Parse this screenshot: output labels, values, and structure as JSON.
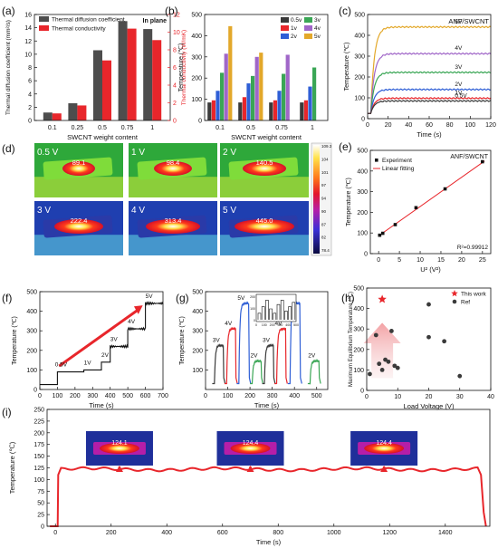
{
  "panel_labels": [
    "(a)",
    "(b)",
    "(c)",
    "(d)",
    "(e)",
    "(f)",
    "(g)",
    "(h)",
    "(i)"
  ],
  "chart_data": [
    {
      "id": "a",
      "type": "bar",
      "categories": [
        "0.1",
        "0.25",
        "0.5",
        "0.75",
        "1"
      ],
      "series": [
        {
          "name": "Thermal diffusion coefficient",
          "values": [
            1.2,
            2.6,
            10.6,
            15.0,
            13.8
          ],
          "color": "#4d4d4d"
        },
        {
          "name": "Thermal conductivity",
          "values": [
            0.8,
            1.7,
            6.8,
            10.4,
            9.1
          ],
          "color": "#e8262b"
        }
      ],
      "xlabel": "SWCNT weight content",
      "ylabel": "Thermal diffusion coefficient (mm²/s)",
      "y2label": "Thermal conductivity (W/mK)",
      "ylim": [
        0,
        16
      ],
      "y2lim": [
        0,
        12
      ],
      "yticks": [
        0,
        2,
        4,
        6,
        8,
        10,
        12,
        14,
        16
      ],
      "y2ticks": [
        0,
        2,
        4,
        6,
        8,
        10,
        12
      ],
      "annotation": "In plane",
      "legend": "top-left"
    },
    {
      "id": "b",
      "type": "bar",
      "categories": [
        "0.1",
        "0.5",
        "0.75",
        "1"
      ],
      "series": [
        {
          "name": "0.5v",
          "values": [
            85,
            85,
            85,
            85
          ],
          "color": "#3a3a3a"
        },
        {
          "name": "1v",
          "values": [
            95,
            110,
            95,
            95
          ],
          "color": "#e8262b"
        },
        {
          "name": "2v",
          "values": [
            140,
            175,
            140,
            160
          ],
          "color": "#2f5fd6"
        },
        {
          "name": "3v",
          "values": [
            225,
            210,
            220,
            250
          ],
          "color": "#3aa655"
        },
        {
          "name": "4v",
          "values": [
            315,
            300,
            310,
            0
          ],
          "color": "#a066c8"
        },
        {
          "name": "5v",
          "values": [
            445,
            320,
            0,
            0
          ],
          "color": "#e3a82a"
        }
      ],
      "xlabel": "SWCNT weight content",
      "ylabel": "Temperature (℃)",
      "ylim": [
        0,
        500
      ],
      "yticks": [
        0,
        100,
        200,
        300,
        400,
        500
      ],
      "legend": "top-right"
    },
    {
      "id": "c",
      "type": "line",
      "title": "ANF/SWCNT",
      "xlabel": "Time (s)",
      "ylabel": "Temperature (℃)",
      "xlim": [
        0,
        120
      ],
      "ylim": [
        0,
        500
      ],
      "xticks": [
        0,
        20,
        40,
        60,
        80,
        100,
        120
      ],
      "yticks": [
        0,
        100,
        200,
        300,
        400,
        500
      ],
      "series": [
        {
          "name": "5V",
          "steady": 440,
          "color": "#e3a82a"
        },
        {
          "name": "4V",
          "steady": 312,
          "color": "#a066c8"
        },
        {
          "name": "3V",
          "steady": 222,
          "color": "#3aa655"
        },
        {
          "name": "2V",
          "steady": 140,
          "color": "#2f5fd6"
        },
        {
          "name": "1V",
          "steady": 98,
          "color": "#e8262b"
        },
        {
          "name": "0.5V",
          "steady": 85,
          "color": "#3a3a3a"
        }
      ]
    },
    {
      "id": "d",
      "type": "heatmap",
      "images": [
        {
          "voltage": "0.5 V",
          "temp": "89.1"
        },
        {
          "voltage": "1 V",
          "temp": "98.4"
        },
        {
          "voltage": "2 V",
          "temp": "140.5"
        },
        {
          "voltage": "3 V",
          "temp": "222.4"
        },
        {
          "voltage": "4 V",
          "temp": "313.4"
        },
        {
          "voltage": "5 V",
          "temp": "445.0"
        }
      ],
      "colorbar_ticks": [
        "109.3",
        "104",
        "101",
        "97",
        "94",
        "90",
        "87",
        "82",
        "78.4"
      ]
    },
    {
      "id": "e",
      "type": "scatter",
      "title": "ANF/SWCNT",
      "x": [
        0.25,
        1,
        4,
        9,
        16,
        25
      ],
      "y": [
        89.1,
        98.4,
        140.5,
        222.4,
        313.4,
        445.0
      ],
      "fit": {
        "slope": 14.2,
        "intercept": 86
      },
      "legend_entries": [
        "Experiment",
        "Linear fitting"
      ],
      "annotation": "R²=0.99912",
      "xlabel": "U² (V²)",
      "ylabel": "Temperature (℃)",
      "xlim": [
        -2,
        27
      ],
      "ylim": [
        0,
        500
      ],
      "xticks": [
        0,
        5,
        10,
        15,
        20,
        25
      ],
      "yticks": [
        0,
        100,
        200,
        300,
        400,
        500
      ]
    },
    {
      "id": "f",
      "type": "line",
      "xlabel": "Time (s)",
      "ylabel": "Temperature (℃)",
      "xlim": [
        0,
        700
      ],
      "ylim": [
        0,
        500
      ],
      "xticks": [
        0,
        100,
        200,
        300,
        400,
        500,
        600,
        700
      ],
      "yticks": [
        0,
        100,
        200,
        300,
        400,
        500
      ],
      "steps": [
        {
          "label": "0.5V",
          "t0": 100,
          "t1": 250,
          "T": 90
        },
        {
          "label": "1V",
          "t0": 250,
          "t1": 350,
          "T": 100
        },
        {
          "label": "2V",
          "t0": 350,
          "t1": 400,
          "T": 140
        },
        {
          "label": "3V",
          "t0": 400,
          "t1": 500,
          "T": 220
        },
        {
          "label": "4V",
          "t0": 500,
          "t1": 600,
          "T": 310
        },
        {
          "label": "5V",
          "t0": 600,
          "t1": 700,
          "T": 440
        }
      ]
    },
    {
      "id": "g",
      "type": "line",
      "xlabel": "Time (s)",
      "ylabel": "Temperature (℃)",
      "xlim": [
        0,
        550
      ],
      "ylim": [
        0,
        500
      ],
      "xticks": [
        0,
        100,
        200,
        300,
        400,
        500
      ],
      "yticks": [
        100,
        200,
        300,
        400,
        500
      ],
      "pulses": [
        {
          "label": "3V",
          "t0": 40,
          "t1": 80,
          "T": 225,
          "color": "#3a3a3a"
        },
        {
          "label": "4V",
          "t0": 95,
          "t1": 135,
          "T": 310,
          "color": "#e8262b"
        },
        {
          "label": "5V",
          "t0": 150,
          "t1": 195,
          "T": 440,
          "color": "#2f5fd6"
        },
        {
          "label": "2V",
          "t0": 210,
          "t1": 250,
          "T": 145,
          "color": "#3aa655"
        },
        {
          "label": "3V",
          "t0": 265,
          "t1": 305,
          "T": 225,
          "color": "#3a3a3a"
        },
        {
          "label": "4V",
          "t0": 320,
          "t1": 360,
          "T": 310,
          "color": "#e8262b"
        },
        {
          "label": "5V",
          "t0": 380,
          "t1": 425,
          "T": 440,
          "color": "#2f5fd6"
        },
        {
          "label": "2V",
          "t0": 470,
          "t1": 510,
          "T": 145,
          "color": "#3aa655"
        }
      ],
      "inset": {
        "xticks": [
          "0",
          "100",
          "200",
          "300",
          "400",
          "500"
        ],
        "yticks": [
          "0",
          "100",
          "200"
        ]
      }
    },
    {
      "id": "h",
      "type": "scatter",
      "xlabel": "Load Voltage (V)",
      "ylabel": "Maximum Equilibrium Temperature (℃)",
      "xlim": [
        0,
        40
      ],
      "ylim": [
        0,
        500
      ],
      "xticks": [
        0,
        10,
        20,
        30,
        40
      ],
      "yticks": [
        0,
        100,
        200,
        300,
        400,
        500
      ],
      "series": [
        {
          "name": "This work",
          "x": [
            5
          ],
          "y": [
            445
          ],
          "color": "#e8262b",
          "marker": "star"
        },
        {
          "name": "Ref",
          "x": [
            1,
            3,
            4,
            5,
            6,
            7,
            8,
            9,
            10,
            20,
            20,
            25,
            30
          ],
          "y": [
            80,
            270,
            130,
            100,
            150,
            140,
            290,
            120,
            110,
            420,
            260,
            240,
            70
          ],
          "color": "#3a3a3a",
          "marker": "circle"
        }
      ],
      "legend": "top-right"
    },
    {
      "id": "i",
      "type": "line",
      "xlabel": "Time (s)",
      "ylabel": "Temperature (℃)",
      "xlim": [
        -30,
        1560
      ],
      "ylim": [
        0,
        250
      ],
      "xticks": [
        0,
        200,
        400,
        600,
        800,
        1000,
        1200,
        1400
      ],
      "yticks": [
        0,
        25,
        50,
        75,
        100,
        125,
        150,
        175,
        200,
        225,
        250
      ],
      "steady": 122,
      "heat_on": 10,
      "heat_off": 1520,
      "thermal_images": [
        {
          "temp": "124.1",
          "t": 230
        },
        {
          "temp": "124.4",
          "t": 700
        },
        {
          "temp": "124.4",
          "t": 1180
        }
      ]
    }
  ]
}
